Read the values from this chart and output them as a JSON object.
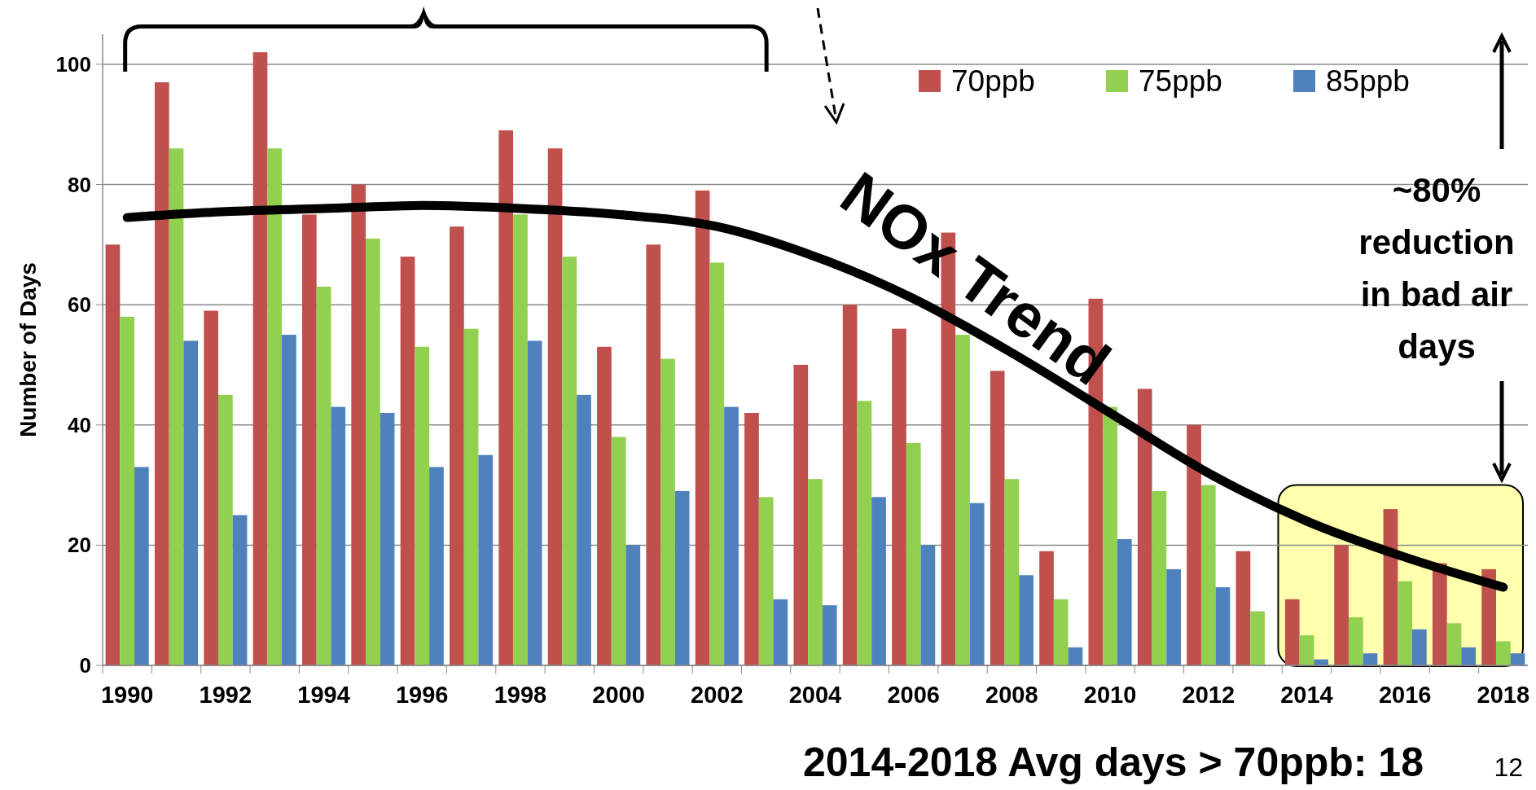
{
  "chart_data": {
    "type": "bar",
    "ylabel": "Number of Days",
    "categories": [
      "1990",
      null,
      "1992",
      null,
      "1994",
      null,
      "1996",
      null,
      "1998",
      null,
      "2000",
      null,
      "2002",
      null,
      "2004",
      null,
      "2006",
      null,
      "2008",
      null,
      "2010",
      null,
      "2012",
      null,
      "2014",
      null,
      "2016",
      null,
      "2018"
    ],
    "series": [
      {
        "name": "70ppb",
        "color": "#c0504d",
        "values": [
          70,
          97,
          59,
          102,
          75,
          80,
          68,
          73,
          89,
          86,
          53,
          70,
          79,
          42,
          50,
          60,
          56,
          72,
          49,
          19,
          61,
          46,
          40,
          19,
          11,
          20,
          26,
          17,
          16
        ]
      },
      {
        "name": "75ppb",
        "color": "#92d050",
        "values": [
          58,
          86,
          45,
          86,
          63,
          71,
          53,
          56,
          75,
          68,
          38,
          51,
          67,
          28,
          31,
          44,
          37,
          55,
          31,
          11,
          43,
          29,
          30,
          9,
          5,
          8,
          14,
          7,
          4
        ]
      },
      {
        "name": "85ppb",
        "color": "#4f81bd",
        "values": [
          33,
          54,
          25,
          55,
          43,
          42,
          33,
          35,
          54,
          45,
          20,
          29,
          43,
          11,
          10,
          28,
          20,
          27,
          15,
          3,
          21,
          16,
          13,
          0,
          1,
          2,
          6,
          3,
          2
        ]
      },
      {
        "name": "NOx Trend",
        "type": "line",
        "color": "#000000",
        "values": [
          74.5,
          null,
          75.5,
          null,
          76,
          null,
          76.5,
          null,
          76,
          null,
          75,
          null,
          73,
          null,
          68,
          null,
          61,
          null,
          52,
          null,
          42,
          null,
          32,
          null,
          24,
          null,
          18,
          null,
          13
        ]
      }
    ],
    "ylim": [
      0,
      105
    ],
    "yticks": [
      0,
      20,
      40,
      60,
      80,
      100
    ],
    "grid": "y",
    "legend": "top right",
    "annotations": [
      "~80% reduction in bad air days",
      "2014-2018 Avg days > 70ppb: 18",
      "12"
    ]
  }
}
